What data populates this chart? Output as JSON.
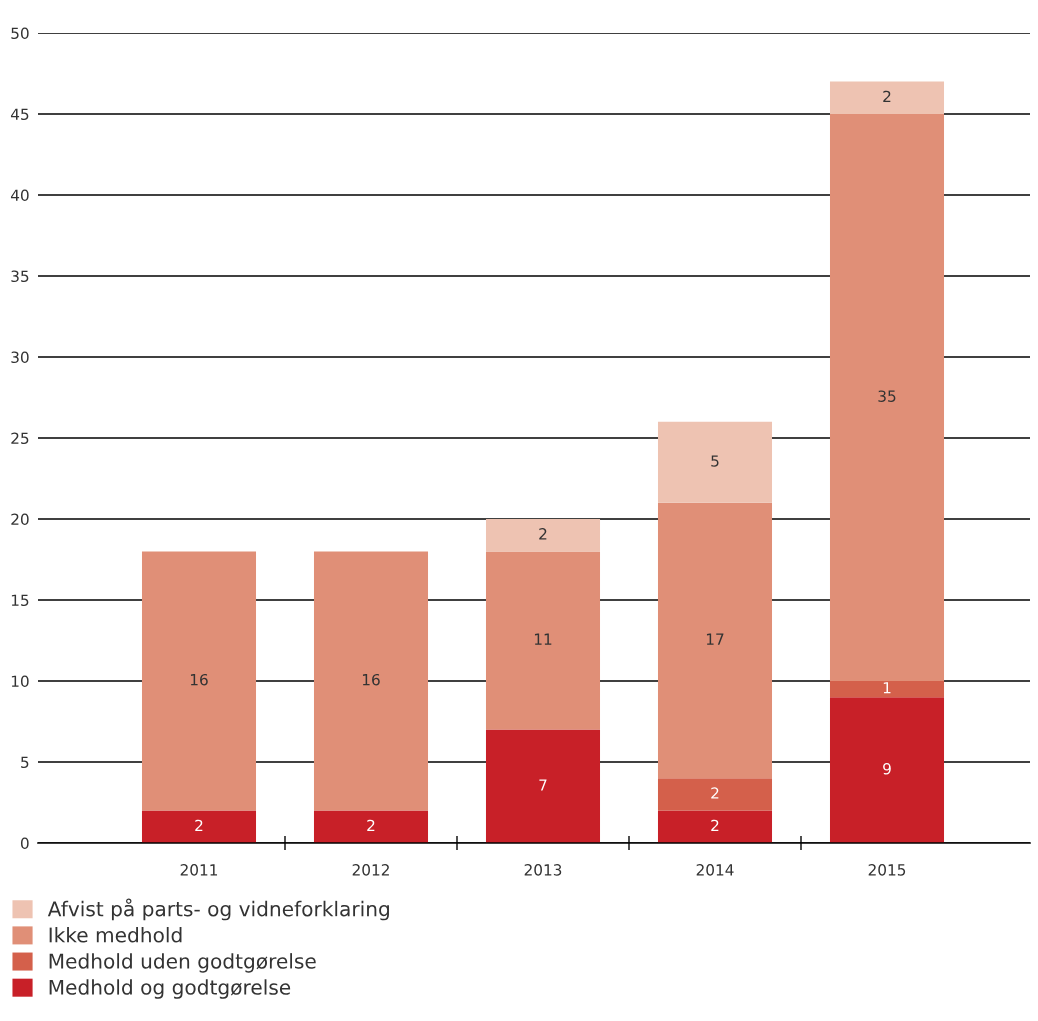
{
  "chart_data": {
    "type": "bar",
    "stacked": true,
    "categories": [
      "2011",
      "2012",
      "2013",
      "2014",
      "2015"
    ],
    "series": [
      {
        "name": "Medhold og godtgørelse",
        "color": "#c82028",
        "values": [
          2,
          2,
          7,
          2,
          9
        ]
      },
      {
        "name": "Medhold uden godtgørelse",
        "color": "#d4604b",
        "values": [
          null,
          null,
          null,
          2,
          1
        ]
      },
      {
        "name": "Ikke medhold",
        "color": "#e08f77",
        "values": [
          16,
          16,
          11,
          17,
          35
        ]
      },
      {
        "name": "Afvist på parts- og vidneforklaring",
        "color": "#eec3b2",
        "values": [
          null,
          null,
          2,
          5,
          2
        ]
      }
    ],
    "ylim": [
      0,
      50
    ],
    "yticks": [
      0,
      5,
      10,
      15,
      20,
      25,
      30,
      35,
      40,
      45,
      50
    ],
    "grid": "y",
    "legend": "bottom left",
    "data_labels": true
  }
}
